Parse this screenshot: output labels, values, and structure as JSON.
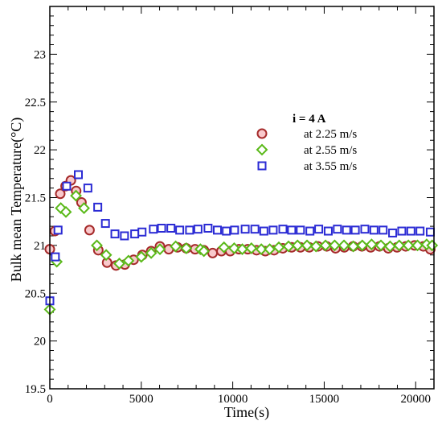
{
  "chart_data": {
    "type": "scatter",
    "xlabel": "Time(s)",
    "ylabel": "Bulk mean Temperature(°C)",
    "xlim": [
      0,
      21000
    ],
    "ylim": [
      19.5,
      23.5
    ],
    "x_ticks": [
      0,
      5000,
      10000,
      15000,
      20000
    ],
    "y_ticks": [
      19.5,
      20,
      20.5,
      21,
      21.5,
      22,
      22.5,
      23
    ],
    "x_tick_labels": [
      "0",
      "5000",
      "10000",
      "15000",
      "20000"
    ],
    "y_tick_labels": [
      "19.5",
      "20",
      "20.5",
      "21",
      "21.5",
      "22",
      "22.5",
      "23"
    ],
    "grid": false,
    "legend": {
      "placement": "top-right",
      "title": "i = 4 A"
    },
    "series": [
      {
        "name": "at 2.25 m/s",
        "marker": "circle",
        "color": "#a52a2a",
        "fill": "#f9c9cc",
        "points": [
          [
            0,
            20.96
          ],
          [
            280,
            21.15
          ],
          [
            570,
            21.54
          ],
          [
            860,
            21.62
          ],
          [
            1150,
            21.68
          ],
          [
            1440,
            21.57
          ],
          [
            1730,
            21.45
          ],
          [
            2170,
            21.16
          ],
          [
            2650,
            20.95
          ],
          [
            3130,
            20.82
          ],
          [
            3620,
            20.79
          ],
          [
            4100,
            20.8
          ],
          [
            4580,
            20.85
          ],
          [
            5060,
            20.9
          ],
          [
            5540,
            20.94
          ],
          [
            6020,
            20.99
          ],
          [
            6500,
            20.96
          ],
          [
            6980,
            20.98
          ],
          [
            7460,
            20.97
          ],
          [
            7940,
            20.96
          ],
          [
            8420,
            20.95
          ],
          [
            8900,
            20.92
          ],
          [
            9380,
            20.94
          ],
          [
            9860,
            20.94
          ],
          [
            10340,
            20.96
          ],
          [
            10820,
            20.96
          ],
          [
            11300,
            20.95
          ],
          [
            11780,
            20.94
          ],
          [
            12260,
            20.95
          ],
          [
            12740,
            20.97
          ],
          [
            13220,
            20.98
          ],
          [
            13700,
            20.98
          ],
          [
            14180,
            20.98
          ],
          [
            14660,
            20.99
          ],
          [
            15140,
            20.99
          ],
          [
            15620,
            20.97
          ],
          [
            16100,
            20.98
          ],
          [
            16580,
            20.99
          ],
          [
            17060,
            20.99
          ],
          [
            17540,
            20.98
          ],
          [
            18020,
            20.99
          ],
          [
            18500,
            20.97
          ],
          [
            18980,
            20.98
          ],
          [
            19460,
            20.99
          ],
          [
            19940,
            21.0
          ],
          [
            20420,
            20.99
          ],
          [
            20800,
            20.96
          ]
        ]
      },
      {
        "name": "at 2.55 m/s",
        "marker": "diamond",
        "color": "#5ab919",
        "fill": "#ffffff",
        "points": [
          [
            0,
            20.33
          ],
          [
            380,
            20.83
          ],
          [
            600,
            21.39
          ],
          [
            880,
            21.35
          ],
          [
            1430,
            21.52
          ],
          [
            1870,
            21.39
          ],
          [
            2570,
            21.0
          ],
          [
            3080,
            20.9
          ],
          [
            3800,
            20.81
          ],
          [
            4300,
            20.84
          ],
          [
            5000,
            20.88
          ],
          [
            5540,
            20.92
          ],
          [
            6020,
            20.96
          ],
          [
            6880,
            20.99
          ],
          [
            7460,
            20.97
          ],
          [
            8230,
            20.96
          ],
          [
            8420,
            20.94
          ],
          [
            9520,
            20.98
          ],
          [
            10080,
            20.97
          ],
          [
            10520,
            20.96
          ],
          [
            11020,
            20.97
          ],
          [
            11560,
            20.96
          ],
          [
            12020,
            20.96
          ],
          [
            12520,
            20.98
          ],
          [
            13050,
            20.99
          ],
          [
            13540,
            21.0
          ],
          [
            14060,
            21.0
          ],
          [
            14550,
            20.99
          ],
          [
            15070,
            21.0
          ],
          [
            15570,
            21.0
          ],
          [
            16080,
            21.0
          ],
          [
            16590,
            20.99
          ],
          [
            17080,
            21.0
          ],
          [
            17590,
            21.01
          ],
          [
            18100,
            21.0
          ],
          [
            18600,
            20.99
          ],
          [
            19100,
            21.0
          ],
          [
            19600,
            21.0
          ],
          [
            20100,
            21.0
          ],
          [
            20600,
            21.01
          ],
          [
            20900,
            21.0
          ]
        ]
      },
      {
        "name": "at 3.55 m/s",
        "marker": "square",
        "color": "#2b2bd4",
        "fill": "#ffffff",
        "points": [
          [
            0,
            20.42
          ],
          [
            300,
            20.88
          ],
          [
            450,
            21.16
          ],
          [
            920,
            21.62
          ],
          [
            1560,
            21.74
          ],
          [
            2080,
            21.6
          ],
          [
            2620,
            21.4
          ],
          [
            3040,
            21.23
          ],
          [
            3560,
            21.12
          ],
          [
            4080,
            21.1
          ],
          [
            4640,
            21.12
          ],
          [
            5040,
            21.14
          ],
          [
            5660,
            21.17
          ],
          [
            6110,
            21.18
          ],
          [
            6620,
            21.18
          ],
          [
            7100,
            21.16
          ],
          [
            7640,
            21.16
          ],
          [
            8100,
            21.17
          ],
          [
            8650,
            21.18
          ],
          [
            9160,
            21.16
          ],
          [
            9650,
            21.15
          ],
          [
            10100,
            21.16
          ],
          [
            10680,
            21.17
          ],
          [
            11210,
            21.17
          ],
          [
            11700,
            21.15
          ],
          [
            12210,
            21.16
          ],
          [
            12740,
            21.17
          ],
          [
            13220,
            21.16
          ],
          [
            13700,
            21.16
          ],
          [
            14220,
            21.15
          ],
          [
            14700,
            21.17
          ],
          [
            15220,
            21.15
          ],
          [
            15720,
            21.17
          ],
          [
            16220,
            21.16
          ],
          [
            16700,
            21.16
          ],
          [
            17220,
            21.17
          ],
          [
            17720,
            21.16
          ],
          [
            18220,
            21.16
          ],
          [
            18740,
            21.13
          ],
          [
            19240,
            21.15
          ],
          [
            19740,
            21.15
          ],
          [
            20240,
            21.15
          ],
          [
            20800,
            21.14
          ]
        ]
      }
    ]
  }
}
